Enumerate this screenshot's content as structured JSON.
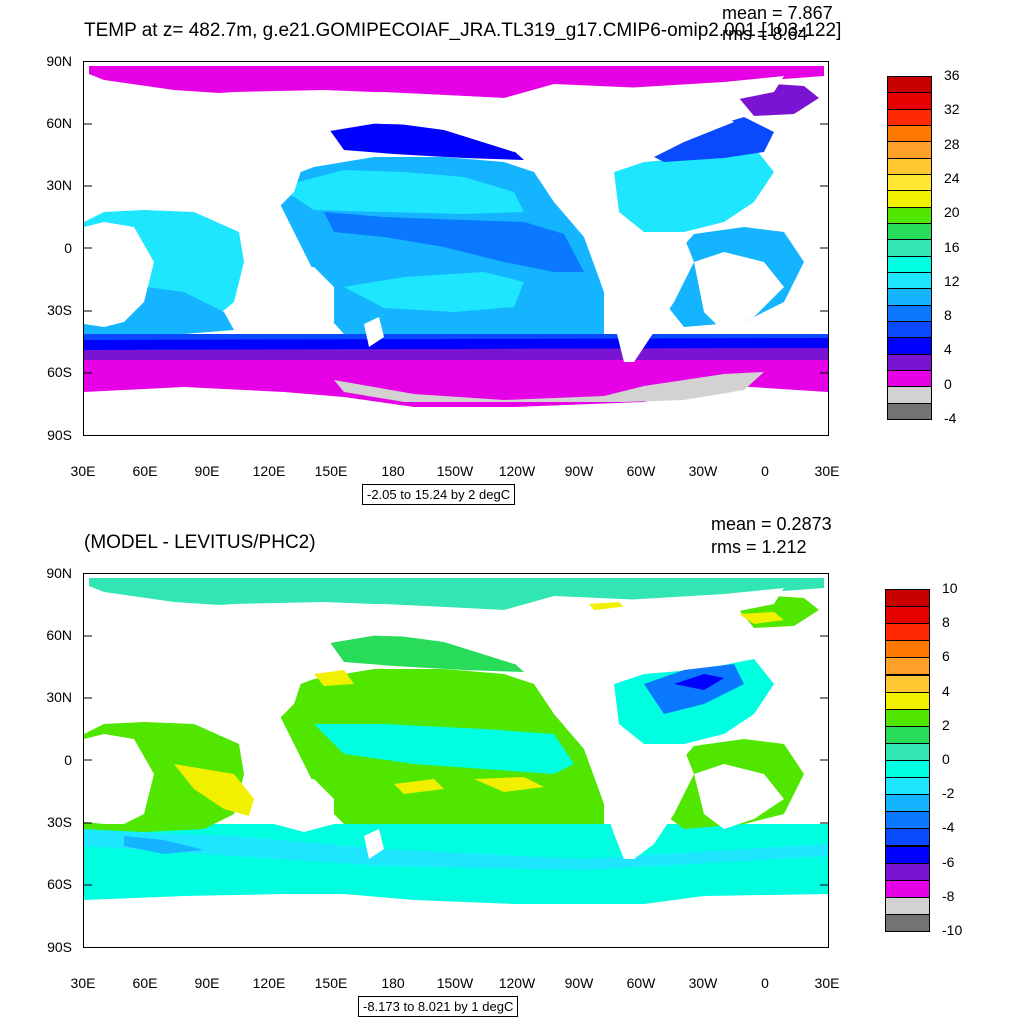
{
  "top": {
    "title": "TEMP at z= 482.7m, g.e21.GOMIPECOIAF_JRA.TL319_g17.CMIP6-omip2.001 [103-122]",
    "mean": "mean = 7.867",
    "rms": "rms = 8.64",
    "lat_labels": [
      "90N",
      "60N",
      "30N",
      "0",
      "30S",
      "60S",
      "90S"
    ],
    "lon_labels": [
      "30E",
      "60E",
      "90E",
      "120E",
      "150E",
      "180",
      "150W",
      "120W",
      "90W",
      "60W",
      "30W",
      "0",
      "30E"
    ],
    "range_text": "-2.05 to 15.24 by 2 degC",
    "colorbar": {
      "labels": [
        "36",
        "32",
        "28",
        "24",
        "20",
        "16",
        "12",
        "8",
        "4",
        "0",
        "-4"
      ],
      "colors": [
        "#c80000",
        "#e60000",
        "#ff2800",
        "#ff7800",
        "#ffa028",
        "#ffc832",
        "#ffe632",
        "#f0f000",
        "#50e600",
        "#28dc5a",
        "#32e6b4",
        "#00ffe0",
        "#1ee6ff",
        "#14b4ff",
        "#0a78ff",
        "#0a4aff",
        "#0000ff",
        "#7a14d2",
        "#e600e6",
        "#d2d2d2",
        "#737373"
      ]
    }
  },
  "bottom": {
    "title": "(MODEL - LEVITUS/PHC2)",
    "mean": "mean = 0.2873",
    "rms": "rms = 1.212",
    "lat_labels": [
      "90N",
      "60N",
      "30N",
      "0",
      "30S",
      "60S",
      "90S"
    ],
    "lon_labels": [
      "30E",
      "60E",
      "90E",
      "120E",
      "150E",
      "180",
      "150W",
      "120W",
      "90W",
      "60W",
      "30W",
      "0",
      "30E"
    ],
    "range_text": "-8.173 to 8.021 by 1 degC",
    "colorbar": {
      "labels": [
        "10",
        "8",
        "6",
        "4",
        "2",
        "0",
        "-2",
        "-4",
        "-6",
        "-8",
        "-10"
      ],
      "colors": [
        "#c80000",
        "#e60000",
        "#ff2800",
        "#ff7800",
        "#ffa028",
        "#ffc832",
        "#f0f000",
        "#50e600",
        "#28dc5a",
        "#32e6b4",
        "#00ffe0",
        "#1ee6ff",
        "#14b4ff",
        "#0a78ff",
        "#0a4aff",
        "#0000ff",
        "#7a14d2",
        "#e600e6",
        "#d2d2d2",
        "#737373"
      ]
    }
  }
}
